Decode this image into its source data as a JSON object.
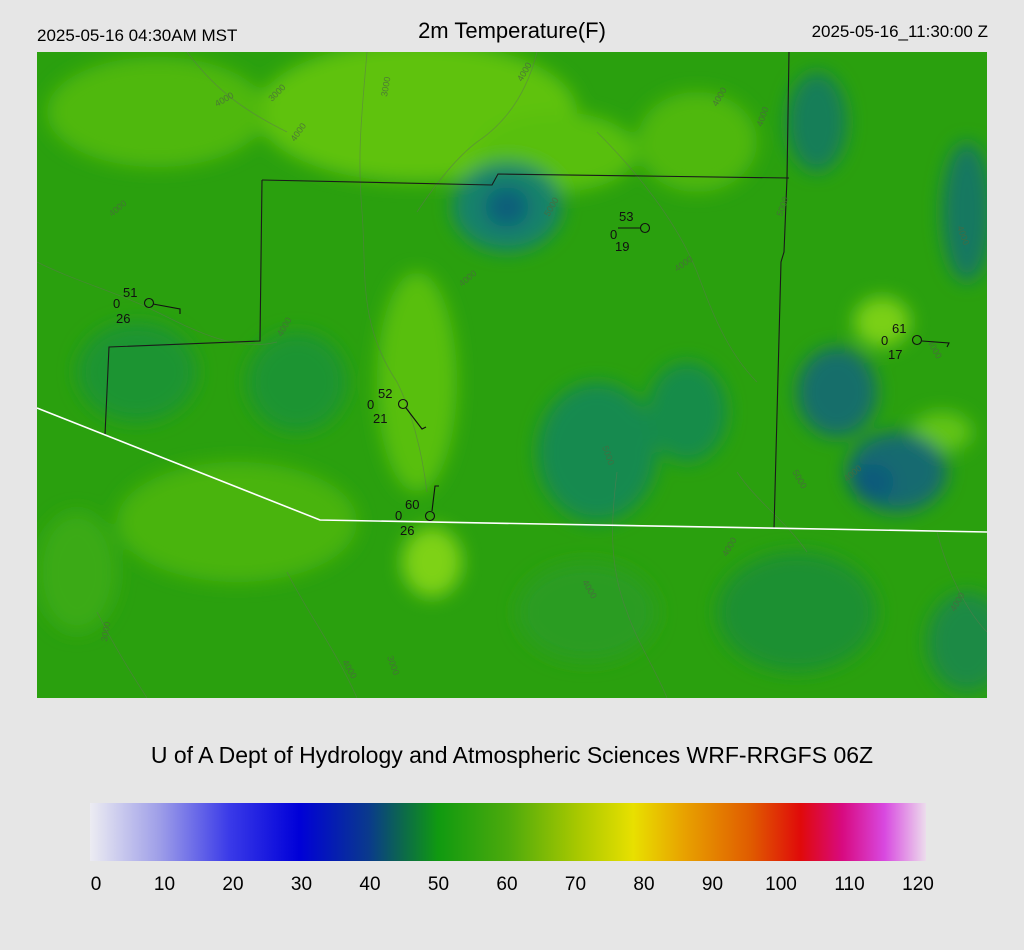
{
  "header": {
    "local_time": "2025-05-16 04:30AM MST",
    "title": "2m Temperature(F)",
    "utc_time": "2025-05-16_11:30:00 Z"
  },
  "credit": "U of A Dept of Hydrology and Atmospheric Sciences WRF-RRGFS 06Z",
  "colorbar": {
    "ticks": [
      "0",
      "10",
      "20",
      "30",
      "40",
      "50",
      "60",
      "70",
      "80",
      "90",
      "100",
      "110",
      "120"
    ],
    "stops": [
      {
        "value": 0,
        "color": "#ececf2"
      },
      {
        "value": 10,
        "color": "#9e9ee8"
      },
      {
        "value": 20,
        "color": "#3a3ae8"
      },
      {
        "value": 30,
        "color": "#0000d8"
      },
      {
        "value": 40,
        "color": "#0a3a8c"
      },
      {
        "value": 45,
        "color": "#0c6a4a"
      },
      {
        "value": 50,
        "color": "#109a10"
      },
      {
        "value": 60,
        "color": "#4caa0c"
      },
      {
        "value": 70,
        "color": "#a8c800"
      },
      {
        "value": 78,
        "color": "#e8e000"
      },
      {
        "value": 85,
        "color": "#e8a400"
      },
      {
        "value": 95,
        "color": "#e05a00"
      },
      {
        "value": 102,
        "color": "#e00a0a"
      },
      {
        "value": 108,
        "color": "#d80a80"
      },
      {
        "value": 114,
        "color": "#d848e0"
      },
      {
        "value": 120,
        "color": "#ecdcec"
      }
    ]
  },
  "map": {
    "contour_labels": [
      "3000",
      "4000",
      "4000",
      "3000",
      "4000",
      "4000",
      "4000",
      "4000",
      "4000",
      "5000",
      "4000",
      "5000",
      "4000",
      "4000",
      "5000",
      "5000",
      "4000",
      "4000",
      "4000",
      "4000",
      "3000",
      "3000",
      "4000",
      "4000"
    ],
    "stations": [
      {
        "temp": "51",
        "dew": "26",
        "left": "0"
      },
      {
        "temp": "52",
        "dew": "21",
        "left": "0"
      },
      {
        "temp": "53",
        "dew": "19",
        "left": "0"
      },
      {
        "temp": "60",
        "dew": "26",
        "left": "0"
      },
      {
        "temp": "61",
        "dew": "17",
        "left": "0"
      }
    ]
  }
}
